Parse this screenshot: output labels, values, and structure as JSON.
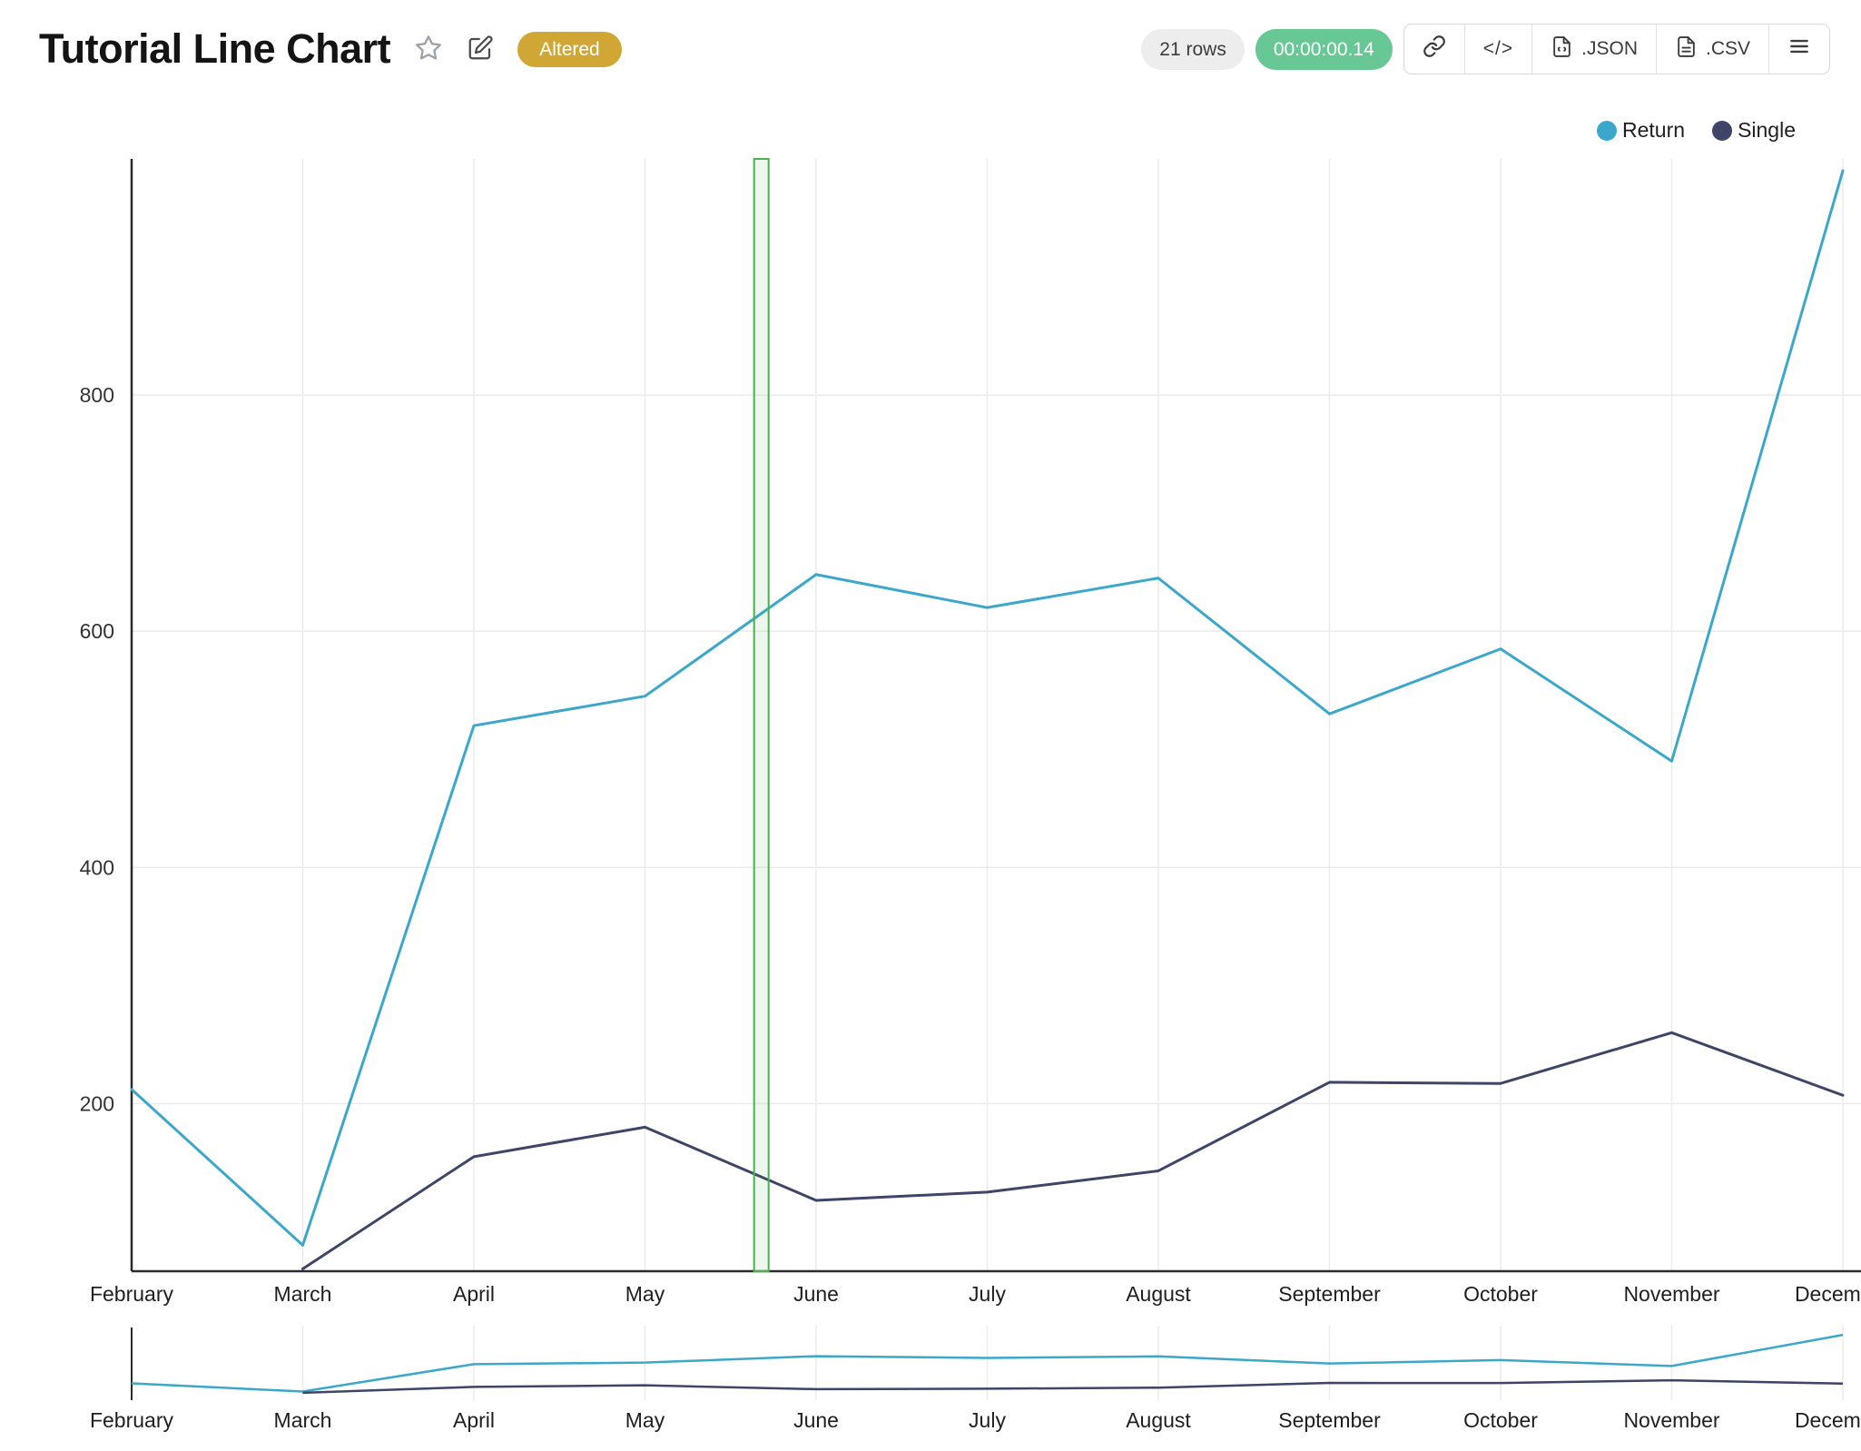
{
  "header": {
    "title": "Tutorial Line Chart",
    "badge": "Altered",
    "rows_label": "21 rows",
    "duration": "00:00:00.14",
    "buttons": {
      "code_label": "</>",
      "json_label": ".JSON",
      "csv_label": ".CSV"
    },
    "icons": [
      "star-icon",
      "edit-icon",
      "link-icon",
      "code-icon",
      "json-file-icon",
      "csv-file-icon",
      "menu-icon"
    ]
  },
  "legend": [
    {
      "label": "Return",
      "color": "#3ba8cb"
    },
    {
      "label": "Single",
      "color": "#3e4566"
    }
  ],
  "chart_data": {
    "type": "line",
    "title": "Tutorial Line Chart",
    "categories": [
      "February",
      "March",
      "April",
      "May",
      "June",
      "July",
      "August",
      "September",
      "October",
      "November",
      "December"
    ],
    "series": [
      {
        "name": "Return",
        "color": "#3ba8cb",
        "values": [
          212,
          80,
          520,
          545,
          648,
          620,
          645,
          530,
          585,
          490,
          990
        ]
      },
      {
        "name": "Single",
        "color": "#3e4566",
        "values": [
          null,
          60,
          155,
          180,
          118,
          125,
          143,
          218,
          217,
          260,
          207
        ]
      }
    ],
    "xlabel": "",
    "ylabel": "",
    "yticks": [
      200,
      400,
      600,
      800
    ],
    "ylim": [
      58,
      1000
    ],
    "grid": true,
    "legend_position": "top-right",
    "highlight_band": {
      "between": [
        "May",
        "June"
      ],
      "x_index": 3.68,
      "stroke": "#4caf50",
      "fill": "rgba(76,175,80,0.10)"
    },
    "mini_chart": {
      "present": true,
      "ylim": [
        0,
        1050
      ]
    }
  }
}
